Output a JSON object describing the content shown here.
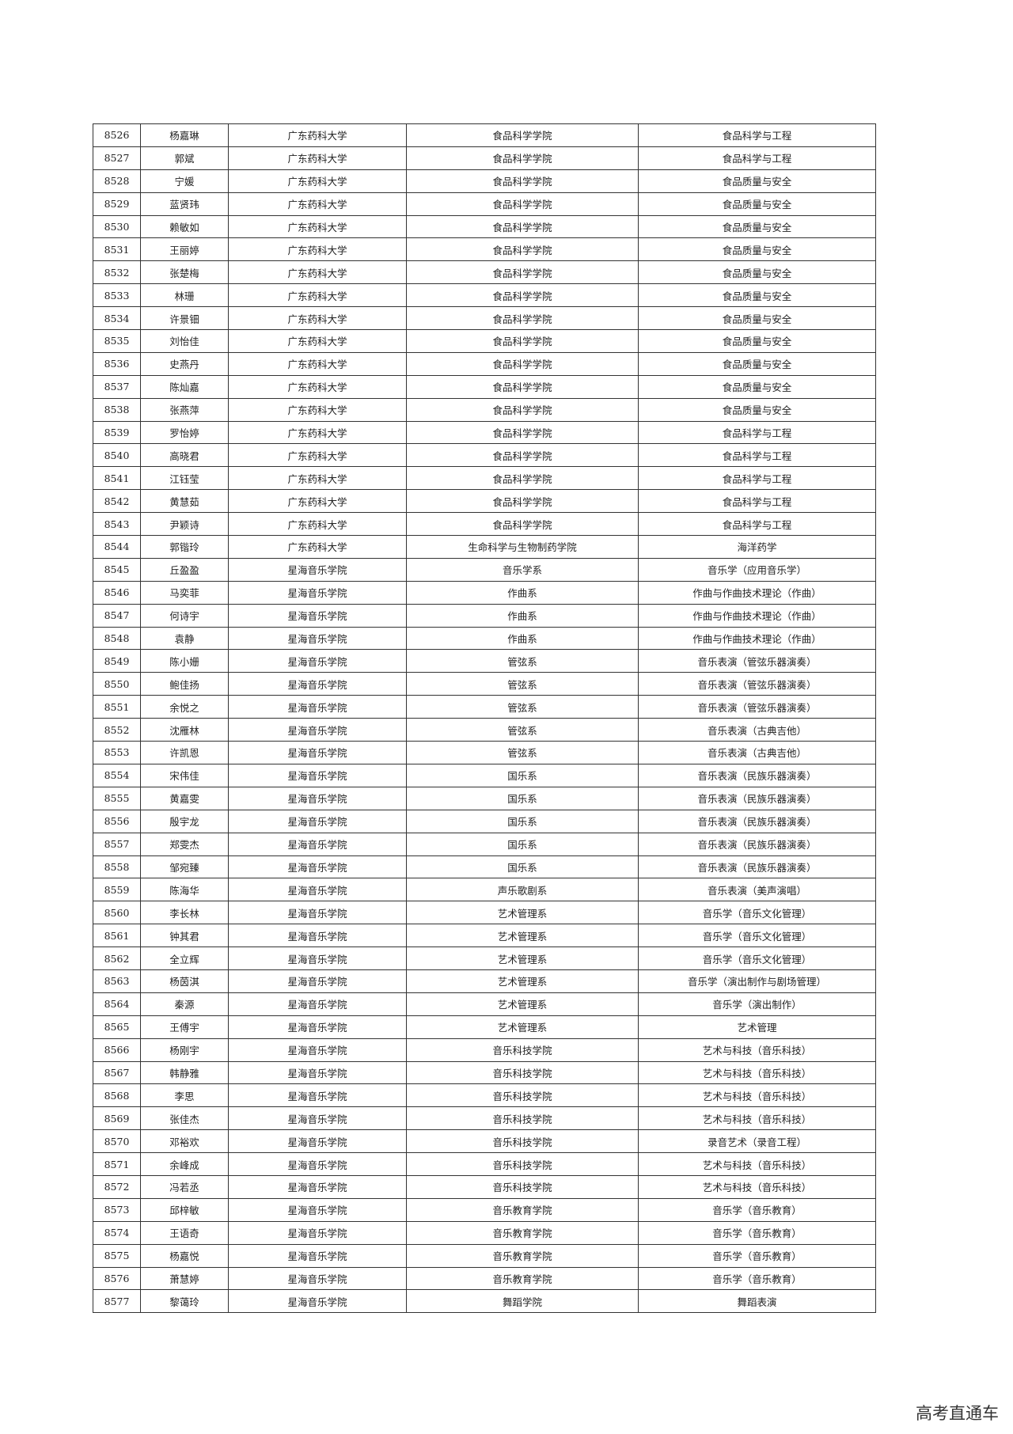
{
  "table": {
    "rows": [
      [
        8526,
        "杨嘉琳",
        "广东药科大学",
        "食品科学学院",
        "食品科学与工程"
      ],
      [
        8527,
        "郭斌",
        "广东药科大学",
        "食品科学学院",
        "食品科学与工程"
      ],
      [
        8528,
        "宁媛",
        "广东药科大学",
        "食品科学学院",
        "食品质量与安全"
      ],
      [
        8529,
        "蓝贤玮",
        "广东药科大学",
        "食品科学学院",
        "食品质量与安全"
      ],
      [
        8530,
        "赖敏如",
        "广东药科大学",
        "食品科学学院",
        "食品质量与安全"
      ],
      [
        8531,
        "王丽婷",
        "广东药科大学",
        "食品科学学院",
        "食品质量与安全"
      ],
      [
        8532,
        "张楚梅",
        "广东药科大学",
        "食品科学学院",
        "食品质量与安全"
      ],
      [
        8533,
        "林珊",
        "广东药科大学",
        "食品科学学院",
        "食品质量与安全"
      ],
      [
        8534,
        "许景钿",
        "广东药科大学",
        "食品科学学院",
        "食品质量与安全"
      ],
      [
        8535,
        "刘怡佳",
        "广东药科大学",
        "食品科学学院",
        "食品质量与安全"
      ],
      [
        8536,
        "史燕丹",
        "广东药科大学",
        "食品科学学院",
        "食品质量与安全"
      ],
      [
        8537,
        "陈灿嘉",
        "广东药科大学",
        "食品科学学院",
        "食品质量与安全"
      ],
      [
        8538,
        "张燕萍",
        "广东药科大学",
        "食品科学学院",
        "食品质量与安全"
      ],
      [
        8539,
        "罗怡婷",
        "广东药科大学",
        "食品科学学院",
        "食品科学与工程"
      ],
      [
        8540,
        "高晓君",
        "广东药科大学",
        "食品科学学院",
        "食品科学与工程"
      ],
      [
        8541,
        "江钰莹",
        "广东药科大学",
        "食品科学学院",
        "食品科学与工程"
      ],
      [
        8542,
        "黄慧茹",
        "广东药科大学",
        "食品科学学院",
        "食品科学与工程"
      ],
      [
        8543,
        "尹颖诗",
        "广东药科大学",
        "食品科学学院",
        "食品科学与工程"
      ],
      [
        8544,
        "郭锴玲",
        "广东药科大学",
        "生命科学与生物制药学院",
        "海洋药学"
      ],
      [
        8545,
        "丘盈盈",
        "星海音乐学院",
        "音乐学系",
        "音乐学（应用音乐学）"
      ],
      [
        8546,
        "马奕菲",
        "星海音乐学院",
        "作曲系",
        "作曲与作曲技术理论（作曲）"
      ],
      [
        8547,
        "何诗宇",
        "星海音乐学院",
        "作曲系",
        "作曲与作曲技术理论（作曲）"
      ],
      [
        8548,
        "袁静",
        "星海音乐学院",
        "作曲系",
        "作曲与作曲技术理论（作曲）"
      ],
      [
        8549,
        "陈小姗",
        "星海音乐学院",
        "管弦系",
        "音乐表演（管弦乐器演奏）"
      ],
      [
        8550,
        "鲍佳扬",
        "星海音乐学院",
        "管弦系",
        "音乐表演（管弦乐器演奏）"
      ],
      [
        8551,
        "余悦之",
        "星海音乐学院",
        "管弦系",
        "音乐表演（管弦乐器演奏）"
      ],
      [
        8552,
        "沈雁林",
        "星海音乐学院",
        "管弦系",
        "音乐表演（古典吉他）"
      ],
      [
        8553,
        "许凯恩",
        "星海音乐学院",
        "管弦系",
        "音乐表演（古典吉他）"
      ],
      [
        8554,
        "宋伟佳",
        "星海音乐学院",
        "国乐系",
        "音乐表演（民族乐器演奏）"
      ],
      [
        8555,
        "黄嘉雯",
        "星海音乐学院",
        "国乐系",
        "音乐表演（民族乐器演奏）"
      ],
      [
        8556,
        "殷宇龙",
        "星海音乐学院",
        "国乐系",
        "音乐表演（民族乐器演奏）"
      ],
      [
        8557,
        "郑雯杰",
        "星海音乐学院",
        "国乐系",
        "音乐表演（民族乐器演奏）"
      ],
      [
        8558,
        "邹宛臻",
        "星海音乐学院",
        "国乐系",
        "音乐表演（民族乐器演奏）"
      ],
      [
        8559,
        "陈海华",
        "星海音乐学院",
        "声乐歌剧系",
        "音乐表演（美声演唱）"
      ],
      [
        8560,
        "李长林",
        "星海音乐学院",
        "艺术管理系",
        "音乐学（音乐文化管理）"
      ],
      [
        8561,
        "钟其君",
        "星海音乐学院",
        "艺术管理系",
        "音乐学（音乐文化管理）"
      ],
      [
        8562,
        "全立辉",
        "星海音乐学院",
        "艺术管理系",
        "音乐学（音乐文化管理）"
      ],
      [
        8563,
        "杨茵淇",
        "星海音乐学院",
        "艺术管理系",
        "音乐学（演出制作与剧场管理）"
      ],
      [
        8564,
        "秦源",
        "星海音乐学院",
        "艺术管理系",
        "音乐学（演出制作）"
      ],
      [
        8565,
        "王傅宇",
        "星海音乐学院",
        "艺术管理系",
        "艺术管理"
      ],
      [
        8566,
        "杨刚宇",
        "星海音乐学院",
        "音乐科技学院",
        "艺术与科技（音乐科技）"
      ],
      [
        8567,
        "韩静雅",
        "星海音乐学院",
        "音乐科技学院",
        "艺术与科技（音乐科技）"
      ],
      [
        8568,
        "李思",
        "星海音乐学院",
        "音乐科技学院",
        "艺术与科技（音乐科技）"
      ],
      [
        8569,
        "张佳杰",
        "星海音乐学院",
        "音乐科技学院",
        "艺术与科技（音乐科技）"
      ],
      [
        8570,
        "邓裕欢",
        "星海音乐学院",
        "音乐科技学院",
        "录音艺术（录音工程）"
      ],
      [
        8571,
        "余峰成",
        "星海音乐学院",
        "音乐科技学院",
        "艺术与科技（音乐科技）"
      ],
      [
        8572,
        "冯若丞",
        "星海音乐学院",
        "音乐科技学院",
        "艺术与科技（音乐科技）"
      ],
      [
        8573,
        "邱梓敏",
        "星海音乐学院",
        "音乐教育学院",
        "音乐学（音乐教育）"
      ],
      [
        8574,
        "王语奇",
        "星海音乐学院",
        "音乐教育学院",
        "音乐学（音乐教育）"
      ],
      [
        8575,
        "杨嘉悦",
        "星海音乐学院",
        "音乐教育学院",
        "音乐学（音乐教育）"
      ],
      [
        8576,
        "萧慧婷",
        "星海音乐学院",
        "音乐教育学院",
        "音乐学（音乐教育）"
      ],
      [
        8577,
        "黎蔼玲",
        "星海音乐学院",
        "舞蹈学院",
        "舞蹈表演"
      ]
    ]
  },
  "watermark": "高考直通车"
}
